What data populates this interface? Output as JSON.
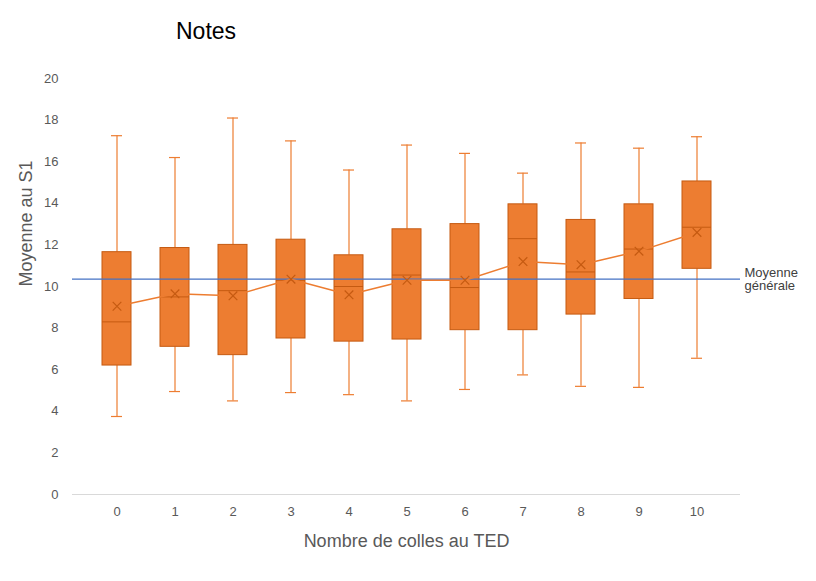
{
  "chart_data": {
    "type": "box",
    "title": "Notes",
    "x_label": "Nombre de colles au TED",
    "y_label": "Moyenne au S1",
    "categories": [
      0,
      1,
      2,
      3,
      4,
      5,
      6,
      7,
      8,
      9,
      10
    ],
    "box": {
      "min": [
        3.75,
        4.95,
        4.5,
        4.9,
        4.8,
        4.5,
        5.05,
        5.75,
        5.2,
        5.15,
        6.55
      ],
      "q1": [
        6.2,
        7.1,
        6.7,
        7.5,
        7.35,
        7.45,
        7.9,
        7.9,
        8.65,
        9.4,
        10.85
      ],
      "median": [
        8.3,
        9.5,
        9.8,
        10.3,
        10.0,
        10.55,
        9.95,
        12.3,
        10.7,
        11.8,
        12.85
      ],
      "q3": [
        11.65,
        11.85,
        12.0,
        12.25,
        11.5,
        12.75,
        13.0,
        13.95,
        13.2,
        13.95,
        15.05
      ],
      "max": [
        17.25,
        16.2,
        18.1,
        17.0,
        15.6,
        16.8,
        16.4,
        15.45,
        16.9,
        16.65,
        17.2
      ],
      "mean": [
        9.05,
        9.65,
        9.55,
        10.35,
        9.6,
        10.3,
        10.3,
        11.2,
        11.05,
        11.7,
        12.6
      ]
    },
    "color": "#ed7d31",
    "marker": "x",
    "reference_line": {
      "value": 10.35,
      "label": "Moyenne générale",
      "color": "#4472c4"
    },
    "ylim": [
      0,
      20
    ],
    "yticks": [
      0,
      2,
      4,
      6,
      8,
      10,
      12,
      14,
      16,
      18,
      20
    ],
    "grid": false
  }
}
